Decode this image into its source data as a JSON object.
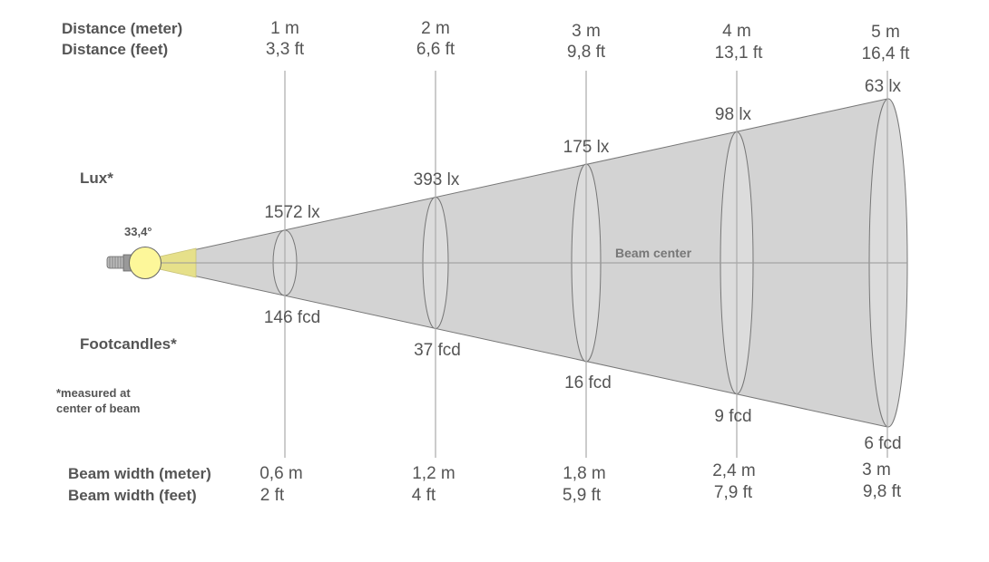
{
  "labels": {
    "distance_meter": "Distance (meter)",
    "distance_feet": "Distance (feet)",
    "lux": "Lux*",
    "footcandles": "Footcandles*",
    "note_line1": "*measured at",
    "note_line2": "center of beam",
    "beam_width_meter": "Beam width (meter)",
    "beam_width_feet": "Beam width (feet)",
    "beam_angle": "33,4°",
    "beam_center": "Beam center"
  },
  "colors": {
    "beam_fill": "#d3d3d3",
    "ellipse_fill": "#dddddd",
    "bulb": "#fdf79a",
    "beam_start": "#e6e08a"
  },
  "columns": [
    {
      "distance_m": "1 m",
      "distance_ft": "3,3 ft",
      "lux": "1572 lx",
      "fcd": "146 fcd",
      "width_m": "0,6 m",
      "width_ft": "2 ft"
    },
    {
      "distance_m": "2 m",
      "distance_ft": "6,6 ft",
      "lux": "393 lx",
      "fcd": "37 fcd",
      "width_m": "1,2 m",
      "width_ft": "4 ft"
    },
    {
      "distance_m": "3 m",
      "distance_ft": "9,8 ft",
      "lux": "175 lx",
      "fcd": "16 fcd",
      "width_m": "1,8 m",
      "width_ft": "5,9 ft"
    },
    {
      "distance_m": "4 m",
      "distance_ft": "13,1 ft",
      "lux": "98 lx",
      "fcd": "9 fcd",
      "width_m": "2,4 m",
      "width_ft": "7,9 ft"
    },
    {
      "distance_m": "5 m",
      "distance_ft": "16,4 ft",
      "lux": "63 lx",
      "fcd": "6 fcd",
      "width_m": "3 m",
      "width_ft": "9,8 ft"
    }
  ]
}
